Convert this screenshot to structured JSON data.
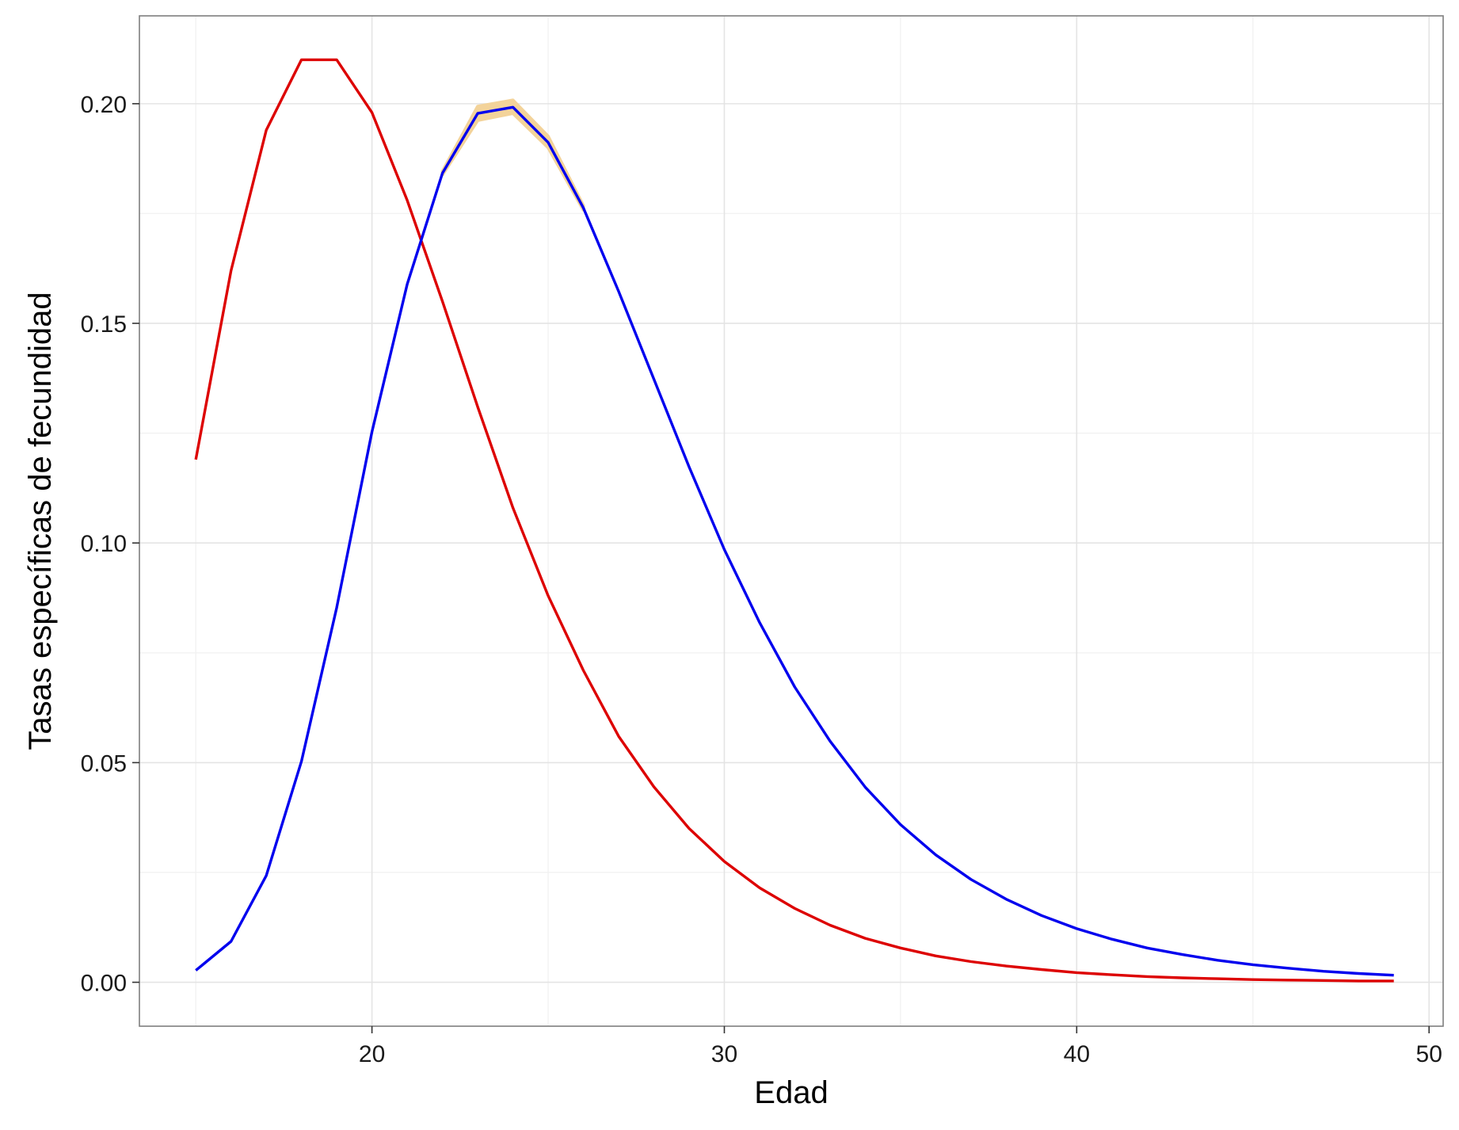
{
  "chart_data": {
    "type": "line",
    "xlabel": "Edad",
    "ylabel": "Tasas específicas de fecundidad",
    "xlim": [
      13.4,
      50.4
    ],
    "ylim": [
      -0.01,
      0.22
    ],
    "x_ticks": [
      20,
      30,
      40,
      50
    ],
    "x_tick_labels": [
      "20",
      "30",
      "40",
      "50"
    ],
    "y_ticks": [
      0.0,
      0.05,
      0.1,
      0.15,
      0.2
    ],
    "y_tick_labels": [
      "0.00",
      "0.05",
      "0.10",
      "0.15",
      "0.20"
    ],
    "grid": true,
    "x": [
      15,
      16,
      17,
      18,
      19,
      20,
      21,
      22,
      23,
      24,
      25,
      26,
      27,
      28,
      29,
      30,
      31,
      32,
      33,
      34,
      35,
      36,
      37,
      38,
      39,
      40,
      41,
      42,
      43,
      44,
      45,
      46,
      47,
      48,
      49
    ],
    "series": [
      {
        "color": "#dd0000",
        "values": [
          0.119,
          0.162,
          0.194,
          0.21,
          0.21,
          0.198,
          0.178,
          0.155,
          0.131,
          0.108,
          0.088,
          0.071,
          0.056,
          0.0445,
          0.035,
          0.0275,
          0.0215,
          0.0168,
          0.013,
          0.01,
          0.0078,
          0.006,
          0.0047,
          0.0037,
          0.0029,
          0.0022,
          0.0017,
          0.0013,
          0.001,
          0.0008,
          0.0006,
          0.0005,
          0.0004,
          0.0003,
          0.0003
        ]
      },
      {
        "color": "#0000ee",
        "band_color": "#f3d39a",
        "values": [
          0.0027,
          0.0093,
          0.0243,
          0.0503,
          0.0853,
          0.1253,
          0.1589,
          0.1842,
          0.1978,
          0.1992,
          0.1912,
          0.1763,
          0.1573,
          0.1373,
          0.1173,
          0.0985,
          0.0819,
          0.0672,
          0.0549,
          0.0444,
          0.0359,
          0.029,
          0.0234,
          0.0189,
          0.0152,
          0.0122,
          0.0098,
          0.0078,
          0.0063,
          0.005,
          0.004,
          0.0032,
          0.0025,
          0.002,
          0.0016
        ],
        "band": {
          "x": [
            22,
            23,
            24,
            25,
            26
          ],
          "lower": [
            0.1838,
            0.1962,
            0.1978,
            0.19,
            0.1758
          ],
          "upper": [
            0.1846,
            0.1994,
            0.2008,
            0.1926,
            0.1768
          ]
        }
      }
    ]
  }
}
